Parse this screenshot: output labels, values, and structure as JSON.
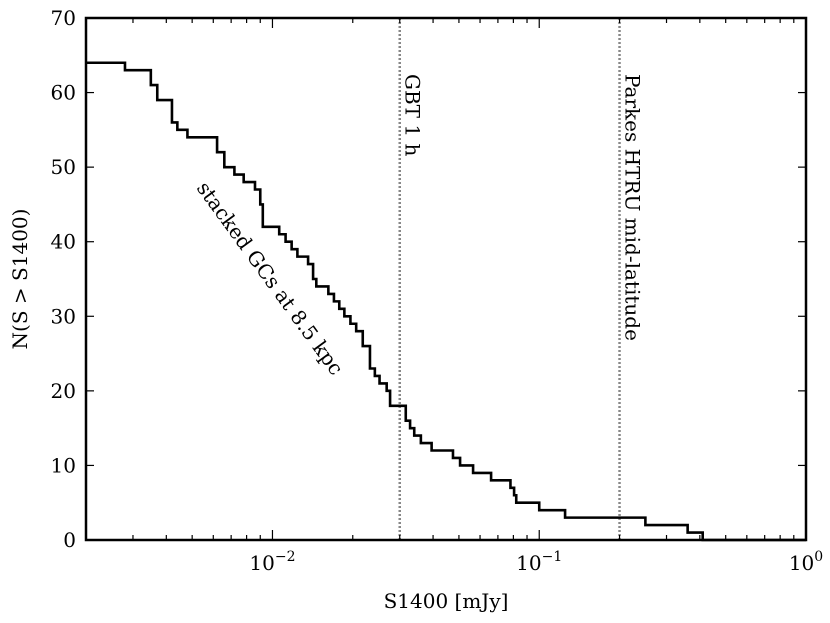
{
  "chart_data": {
    "type": "line",
    "xlabel": "S1400 [mJy]",
    "ylabel": "N(S > S1400)",
    "xscale": "log",
    "xlim": [
      0.002,
      1.0
    ],
    "ylim": [
      0,
      70
    ],
    "grid": false,
    "xticks": [
      {
        "value": 0.01,
        "base": "10",
        "exp": "−2"
      },
      {
        "value": 0.1,
        "base": "10",
        "exp": "−1"
      },
      {
        "value": 1.0,
        "base": "10",
        "exp": "0"
      }
    ],
    "yticks": [
      0,
      10,
      20,
      30,
      40,
      50,
      60,
      70
    ],
    "series": [
      {
        "label": "stacked GCs at 8.5 kpc",
        "step": [
          [
            0.002,
            64
          ],
          [
            0.0028,
            64
          ],
          [
            0.0028,
            63
          ],
          [
            0.0035,
            63
          ],
          [
            0.0035,
            61
          ],
          [
            0.0037,
            61
          ],
          [
            0.0037,
            59
          ],
          [
            0.0042,
            59
          ],
          [
            0.0042,
            56
          ],
          [
            0.0044,
            56
          ],
          [
            0.0044,
            55
          ],
          [
            0.0048,
            55
          ],
          [
            0.0048,
            54
          ],
          [
            0.0062,
            54
          ],
          [
            0.0062,
            52
          ],
          [
            0.0066,
            52
          ],
          [
            0.0066,
            50
          ],
          [
            0.0072,
            50
          ],
          [
            0.0072,
            49
          ],
          [
            0.0078,
            49
          ],
          [
            0.0078,
            48
          ],
          [
            0.0086,
            48
          ],
          [
            0.0086,
            47
          ],
          [
            0.009,
            47
          ],
          [
            0.009,
            45
          ],
          [
            0.0092,
            45
          ],
          [
            0.0092,
            42
          ],
          [
            0.0106,
            42
          ],
          [
            0.0106,
            41
          ],
          [
            0.0112,
            41
          ],
          [
            0.0112,
            40
          ],
          [
            0.0118,
            40
          ],
          [
            0.0118,
            39
          ],
          [
            0.0124,
            39
          ],
          [
            0.0124,
            38
          ],
          [
            0.0136,
            38
          ],
          [
            0.0136,
            37
          ],
          [
            0.0142,
            37
          ],
          [
            0.0142,
            35
          ],
          [
            0.0146,
            35
          ],
          [
            0.0146,
            34
          ],
          [
            0.0162,
            34
          ],
          [
            0.0162,
            33
          ],
          [
            0.017,
            33
          ],
          [
            0.017,
            32
          ],
          [
            0.0178,
            32
          ],
          [
            0.0178,
            31
          ],
          [
            0.0186,
            31
          ],
          [
            0.0186,
            30
          ],
          [
            0.0196,
            30
          ],
          [
            0.0196,
            29
          ],
          [
            0.0206,
            29
          ],
          [
            0.0206,
            28
          ],
          [
            0.0218,
            28
          ],
          [
            0.0218,
            26
          ],
          [
            0.0232,
            26
          ],
          [
            0.0232,
            23
          ],
          [
            0.0242,
            23
          ],
          [
            0.0242,
            22
          ],
          [
            0.0252,
            22
          ],
          [
            0.0252,
            21
          ],
          [
            0.0268,
            21
          ],
          [
            0.0268,
            20
          ],
          [
            0.0276,
            20
          ],
          [
            0.0276,
            18
          ],
          [
            0.0316,
            18
          ],
          [
            0.0316,
            16
          ],
          [
            0.0328,
            16
          ],
          [
            0.0328,
            15
          ],
          [
            0.034,
            15
          ],
          [
            0.034,
            14
          ],
          [
            0.036,
            14
          ],
          [
            0.036,
            13
          ],
          [
            0.0395,
            13
          ],
          [
            0.0395,
            12
          ],
          [
            0.0475,
            12
          ],
          [
            0.0475,
            11
          ],
          [
            0.0505,
            11
          ],
          [
            0.0505,
            10
          ],
          [
            0.0565,
            10
          ],
          [
            0.0565,
            9
          ],
          [
            0.066,
            9
          ],
          [
            0.066,
            8
          ],
          [
            0.078,
            8
          ],
          [
            0.078,
            7
          ],
          [
            0.0805,
            7
          ],
          [
            0.0805,
            6
          ],
          [
            0.082,
            6
          ],
          [
            0.082,
            5
          ],
          [
            0.1,
            5
          ],
          [
            0.1,
            4
          ],
          [
            0.125,
            4
          ],
          [
            0.125,
            3
          ],
          [
            0.25,
            3
          ],
          [
            0.25,
            2
          ],
          [
            0.36,
            2
          ],
          [
            0.36,
            1
          ],
          [
            0.41,
            1
          ],
          [
            0.41,
            0
          ],
          [
            1.0,
            0
          ]
        ]
      }
    ],
    "vlines": [
      {
        "x": 0.03,
        "label": "GBT 1 h",
        "style": "dotted"
      },
      {
        "x": 0.2,
        "label": "Parkes HTRU mid-latitude",
        "style": "dotted"
      }
    ]
  }
}
